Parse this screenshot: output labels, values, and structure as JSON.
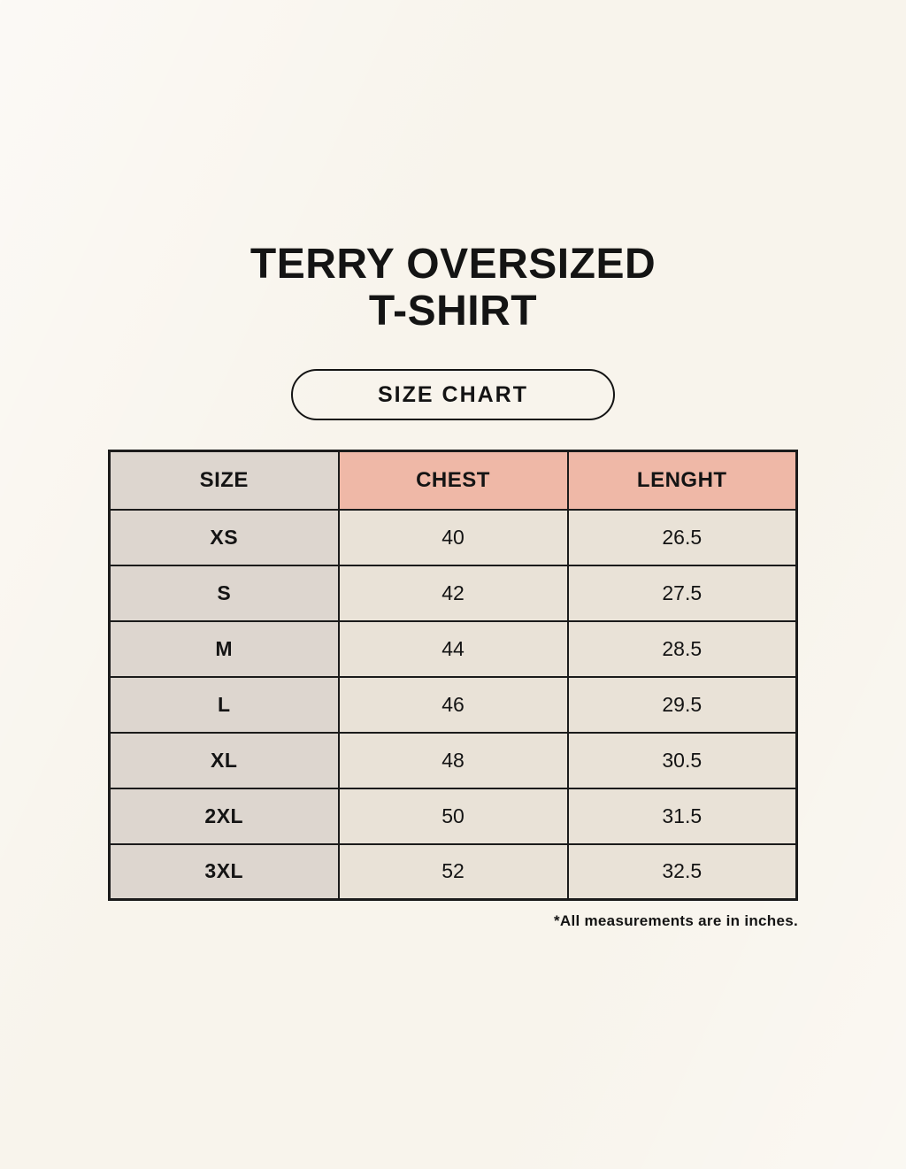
{
  "page": {
    "title_line1": "TERRY OVERSIZED",
    "title_line2": "T-SHIRT",
    "badge_label": "SIZE CHART",
    "footnote": "*All measurements are in inches."
  },
  "colors": {
    "background": "#f8f4ec",
    "header_pink": "#efb8a7",
    "header_gray": "#ddd6cf",
    "cell_beige": "#e9e2d7",
    "border": "#1b1b1b",
    "text": "#141414"
  },
  "chart_data": {
    "type": "table",
    "title": "TERRY OVERSIZED T-SHIRT — SIZE CHART",
    "columns": [
      "SIZE",
      "CHEST",
      "LENGHT"
    ],
    "rows": [
      [
        "XS",
        "40",
        "26.5"
      ],
      [
        "S",
        "42",
        "27.5"
      ],
      [
        "M",
        "44",
        "28.5"
      ],
      [
        "L",
        "46",
        "29.5"
      ],
      [
        "XL",
        "48",
        "30.5"
      ],
      [
        "2XL",
        "50",
        "31.5"
      ],
      [
        "3XL",
        "52",
        "32.5"
      ]
    ],
    "units": "inches",
    "note": "*All measurements are in inches."
  }
}
